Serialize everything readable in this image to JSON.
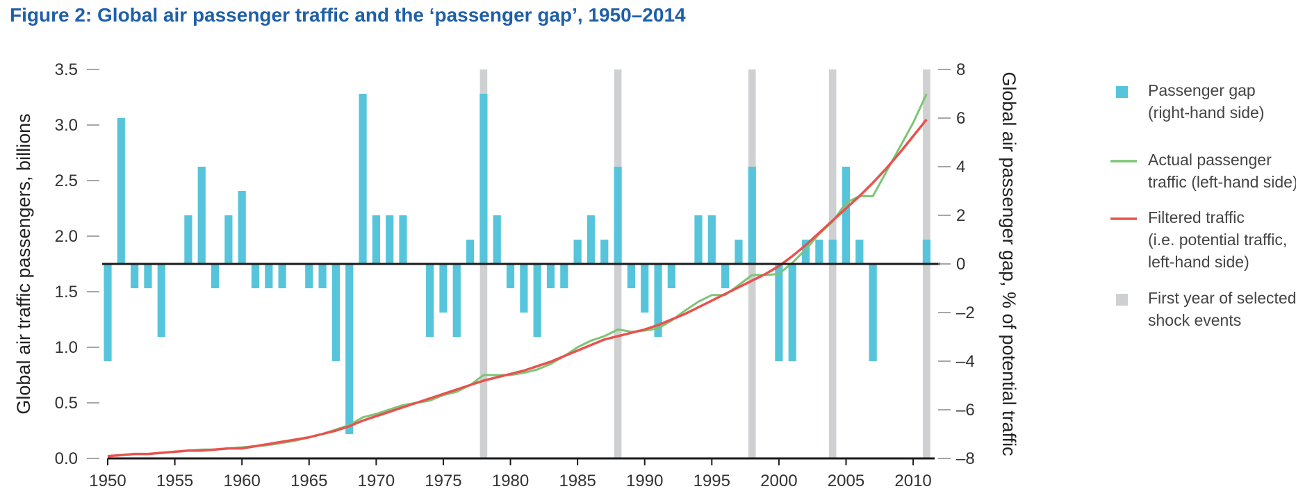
{
  "chart_data": {
    "type": "bar+line",
    "title": "Figure 2: Global air passenger traffic and the ‘passenger gap’, 1950–2014",
    "xlabel": "",
    "ylabel_left": "Global air traffic passengers, billions",
    "ylabel_right": "Global air passenger gap, % of potential traffic",
    "xlim": [
      1950,
      2011.6
    ],
    "ylim_left": [
      0,
      3.5
    ],
    "ylim_right": [
      -8,
      8
    ],
    "x_ticks": [
      1950,
      1955,
      1960,
      1965,
      1970,
      1975,
      1980,
      1985,
      1990,
      1995,
      2000,
      2005,
      2010
    ],
    "x_tick_labels": [
      "1950",
      "1955",
      "1960",
      "1965",
      "1970",
      "1975",
      "1980",
      "1985",
      "1990",
      "1995",
      "2000",
      "2005",
      "2010"
    ],
    "y_left_ticks": [
      0,
      0.5,
      1,
      1.5,
      2,
      2.5,
      3,
      3.5
    ],
    "y_left_tick_labels": [
      "0.0",
      "0.5",
      "1.0",
      "1.5",
      "2.0",
      "2.5",
      "3.0",
      "3.5"
    ],
    "y_right_ticks": [
      -8,
      -6,
      -4,
      -2,
      0,
      2,
      4,
      6,
      8
    ],
    "y_right_tick_labels": [
      "–8",
      "–6",
      "–4",
      "–2",
      "0",
      "2",
      "4",
      "6",
      "8"
    ],
    "shock_years": [
      1978,
      1988,
      1998,
      2004,
      2011
    ],
    "series": [
      {
        "name": "Passenger gap (right-hand side)",
        "type": "bar",
        "axis": "right",
        "color": "#56c5dc",
        "x": [
          1950,
          1951,
          1952,
          1953,
          1954,
          1955,
          1956,
          1957,
          1958,
          1959,
          1960,
          1961,
          1962,
          1963,
          1964,
          1965,
          1966,
          1967,
          1968,
          1969,
          1970,
          1971,
          1972,
          1973,
          1974,
          1975,
          1976,
          1977,
          1978,
          1979,
          1980,
          1981,
          1982,
          1983,
          1984,
          1985,
          1986,
          1987,
          1988,
          1989,
          1990,
          1991,
          1992,
          1993,
          1994,
          1995,
          1996,
          1997,
          1998,
          1999,
          2000,
          2001,
          2002,
          2003,
          2004,
          2005,
          2006,
          2007,
          2008,
          2009,
          2010,
          2011
        ],
        "values": [
          -4,
          6,
          -1,
          -1,
          -3,
          0,
          2,
          4,
          -1,
          2,
          3,
          -1,
          -1,
          -1,
          0,
          -1,
          -1,
          -4,
          -7,
          7,
          2,
          2,
          2,
          0,
          -3,
          -2,
          -3,
          1,
          7,
          2,
          -1,
          -2,
          -3,
          -1,
          -1,
          1,
          2,
          1,
          4,
          -1,
          -2,
          -3,
          -1,
          0,
          2,
          2,
          -1,
          1,
          4,
          0,
          -4,
          -4,
          1,
          1,
          1,
          4,
          1,
          -4,
          0,
          0,
          0,
          1
        ]
      },
      {
        "name": "Actual passenger traffic (left-hand side)",
        "type": "line",
        "axis": "left",
        "color": "#7cc576",
        "x": [
          1950,
          1951,
          1952,
          1953,
          1954,
          1955,
          1956,
          1957,
          1958,
          1959,
          1960,
          1961,
          1962,
          1963,
          1964,
          1965,
          1966,
          1967,
          1968,
          1969,
          1970,
          1971,
          1972,
          1973,
          1974,
          1975,
          1976,
          1977,
          1978,
          1979,
          1980,
          1981,
          1982,
          1983,
          1984,
          1985,
          1986,
          1987,
          1988,
          1989,
          1990,
          1991,
          1992,
          1993,
          1994,
          1995,
          1996,
          1997,
          1998,
          1999,
          2000,
          2001,
          2002,
          2003,
          2004,
          2005,
          2006,
          2007,
          2008,
          2009,
          2010,
          2011
        ],
        "values": [
          0.02,
          0.03,
          0.04,
          0.04,
          0.05,
          0.06,
          0.07,
          0.08,
          0.08,
          0.09,
          0.1,
          0.11,
          0.12,
          0.14,
          0.16,
          0.19,
          0.22,
          0.26,
          0.3,
          0.37,
          0.4,
          0.44,
          0.48,
          0.5,
          0.52,
          0.57,
          0.6,
          0.66,
          0.75,
          0.75,
          0.75,
          0.77,
          0.8,
          0.85,
          0.92,
          1,
          1.06,
          1.1,
          1.16,
          1.14,
          1.15,
          1.17,
          1.24,
          1.33,
          1.41,
          1.47,
          1.47,
          1.56,
          1.65,
          1.65,
          1.66,
          1.76,
          1.88,
          2.02,
          2.13,
          2.3,
          2.36,
          2.36,
          2.58,
          2.8,
          3.02,
          3.28
        ]
      },
      {
        "name": "Filtered traffic (i.e. potential traffic, left-hand side)",
        "type": "line",
        "axis": "left",
        "color": "#e8524e",
        "x": [
          1950,
          1951,
          1952,
          1953,
          1954,
          1955,
          1956,
          1957,
          1958,
          1959,
          1960,
          1961,
          1962,
          1963,
          1964,
          1965,
          1966,
          1967,
          1968,
          1969,
          1970,
          1971,
          1972,
          1973,
          1974,
          1975,
          1976,
          1977,
          1978,
          1979,
          1980,
          1981,
          1982,
          1983,
          1984,
          1985,
          1986,
          1987,
          1988,
          1989,
          1990,
          1991,
          1992,
          1993,
          1994,
          1995,
          1996,
          1997,
          1998,
          1999,
          2000,
          2001,
          2002,
          2003,
          2004,
          2005,
          2006,
          2007,
          2008,
          2009,
          2010,
          2011
        ],
        "values": [
          0.02,
          0.03,
          0.04,
          0.04,
          0.05,
          0.06,
          0.07,
          0.07,
          0.08,
          0.09,
          0.09,
          0.11,
          0.13,
          0.15,
          0.17,
          0.19,
          0.22,
          0.25,
          0.29,
          0.34,
          0.38,
          0.42,
          0.46,
          0.5,
          0.54,
          0.58,
          0.62,
          0.66,
          0.7,
          0.73,
          0.76,
          0.79,
          0.83,
          0.87,
          0.92,
          0.97,
          1.02,
          1.07,
          1.1,
          1.13,
          1.16,
          1.2,
          1.25,
          1.3,
          1.36,
          1.42,
          1.48,
          1.54,
          1.6,
          1.66,
          1.73,
          1.82,
          1.92,
          2.03,
          2.14,
          2.25,
          2.36,
          2.48,
          2.61,
          2.75,
          2.9,
          3.05
        ]
      },
      {
        "name": "First year of selected shock events",
        "type": "band",
        "color": "#cfd0d2"
      }
    ],
    "legend": {
      "position": "right",
      "items": [
        {
          "lines": [
            "Passenger gap",
            "(right-hand side)"
          ],
          "symbol": "square",
          "color": "#56c5dc"
        },
        {
          "lines": [
            "Actual passenger",
            "traffic (left-hand side)"
          ],
          "symbol": "line",
          "color": "#7cc576"
        },
        {
          "lines": [
            "Filtered traffic",
            "(i.e. potential traffic,",
            "left-hand side)"
          ],
          "symbol": "line",
          "color": "#e8524e"
        },
        {
          "lines": [
            "First year of selected",
            "shock events"
          ],
          "symbol": "square",
          "color": "#cfd0d2"
        }
      ]
    }
  }
}
